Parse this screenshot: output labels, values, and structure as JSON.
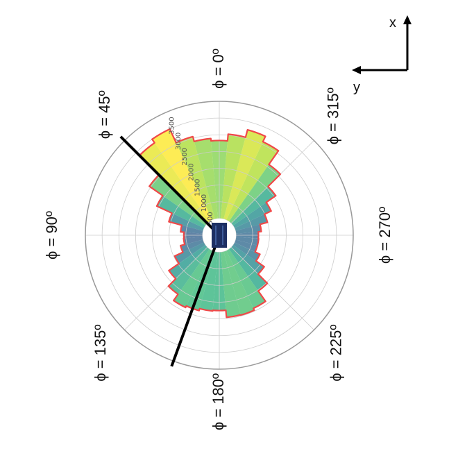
{
  "chart_data": {
    "type": "polar",
    "title": "",
    "angle_symbol": "ϕ",
    "angle_labels": [
      {
        "deg": 0,
        "text": "ϕ = 0º"
      },
      {
        "deg": 45,
        "text": "ϕ = 45º"
      },
      {
        "deg": 90,
        "text": "ϕ = 90º"
      },
      {
        "deg": 135,
        "text": "ϕ = 135º"
      },
      {
        "deg": 180,
        "text": "ϕ = 180º"
      },
      {
        "deg": 225,
        "text": "ϕ = 225º"
      },
      {
        "deg": 270,
        "text": "ϕ = 270º"
      },
      {
        "deg": 315,
        "text": "ϕ = 315º"
      }
    ],
    "radial_ticks": [
      "500",
      "1000",
      "1500",
      "2000",
      "2500",
      "3000",
      "3500"
    ],
    "radial_tick_values": [
      500,
      1000,
      1500,
      2000,
      2500,
      3000,
      3500
    ],
    "r_range": [
      0,
      4000
    ],
    "inner_hole_radius": 500,
    "colormap": "viridis",
    "color_range": [
      0,
      3500
    ],
    "grid": true,
    "orientation": "0° at top, angles increase counter-clockwise",
    "series": [
      {
        "phi_deg": [
          0,
          10,
          20,
          30,
          40,
          50,
          60,
          70,
          80,
          90,
          100,
          110,
          120,
          130,
          140,
          150,
          160,
          170,
          180,
          190,
          200,
          210,
          220,
          230,
          240,
          250,
          260,
          270,
          280,
          290,
          300,
          310,
          320,
          330,
          340,
          350
        ],
        "values": [
          2830,
          2900,
          3050,
          3500,
          3370,
          2550,
          2060,
          1560,
          1160,
          1060,
          1070,
          1200,
          1470,
          1840,
          2150,
          2380,
          2330,
          2270,
          2250,
          2460,
          2470,
          2410,
          2030,
          1640,
          1340,
          1180,
          1180,
          1170,
          1260,
          1490,
          1710,
          2060,
          2580,
          3080,
          3260,
          3030
        ]
      }
    ],
    "boundary_lines_deg": [
      45,
      160
    ],
    "axes_indicator": {
      "x_label": "x",
      "y_label": "y"
    },
    "colors": {
      "envelope": "#f04848",
      "boundary_lines": "#000000",
      "grid": "#cccccc",
      "outer_circle": "#999999",
      "center_marker": "#1d2f63"
    }
  }
}
